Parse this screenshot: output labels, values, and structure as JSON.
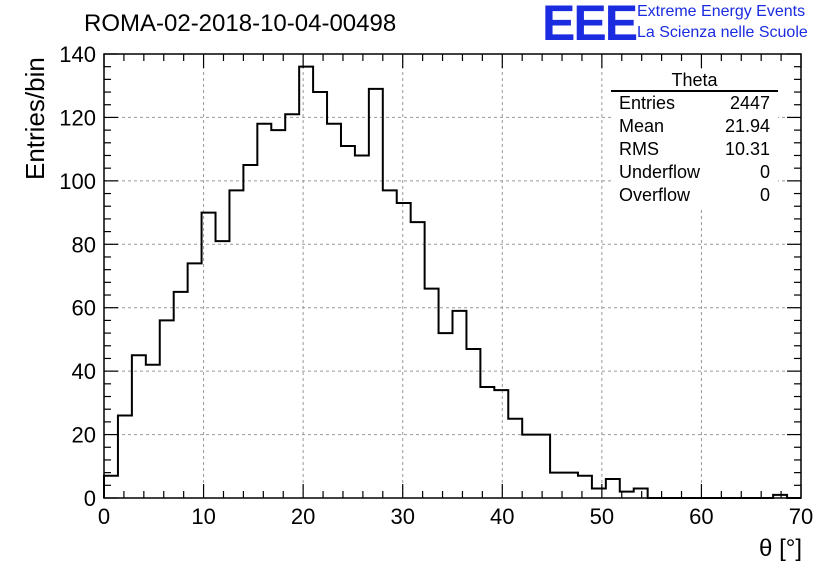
{
  "header": {
    "title": "ROMA-02-2018-10-04-00498",
    "logo_text": "EEE",
    "logo_line1": "Extreme Energy Events",
    "logo_line2": "La Scienza nelle Scuole"
  },
  "colors": {
    "logo": "#1a2be0",
    "line": "#000000",
    "grid": "#999999"
  },
  "stats_box": {
    "title": "Theta",
    "rows": [
      {
        "label": "Entries",
        "value": "2447"
      },
      {
        "label": "Mean",
        "value": "21.94"
      },
      {
        "label": "RMS",
        "value": "10.31"
      },
      {
        "label": "Underflow",
        "value": "0"
      },
      {
        "label": "Overflow",
        "value": "0"
      }
    ]
  },
  "chart_data": {
    "type": "histogram",
    "title": "ROMA-02-2018-10-04-00498",
    "xlabel": "θ [°]",
    "ylabel": "Entries/bin",
    "xlim": [
      0,
      70
    ],
    "ylim": [
      0,
      140
    ],
    "xticks": [
      0,
      10,
      20,
      30,
      40,
      50,
      60,
      70
    ],
    "yticks": [
      0,
      20,
      40,
      60,
      80,
      100,
      120,
      140
    ],
    "grid": true,
    "legend": "top-right",
    "bin_width": 1.4,
    "values": [
      7,
      26,
      45,
      42,
      56,
      65,
      74,
      90,
      81,
      97,
      105,
      118,
      116,
      121,
      136,
      128,
      118,
      111,
      108,
      129,
      97,
      93,
      87,
      66,
      52,
      59,
      47,
      35,
      34,
      25,
      20,
      20,
      8,
      8,
      7,
      3,
      6,
      2,
      3,
      0,
      0,
      0,
      0,
      0,
      0,
      0,
      0,
      0,
      1,
      0
    ]
  }
}
